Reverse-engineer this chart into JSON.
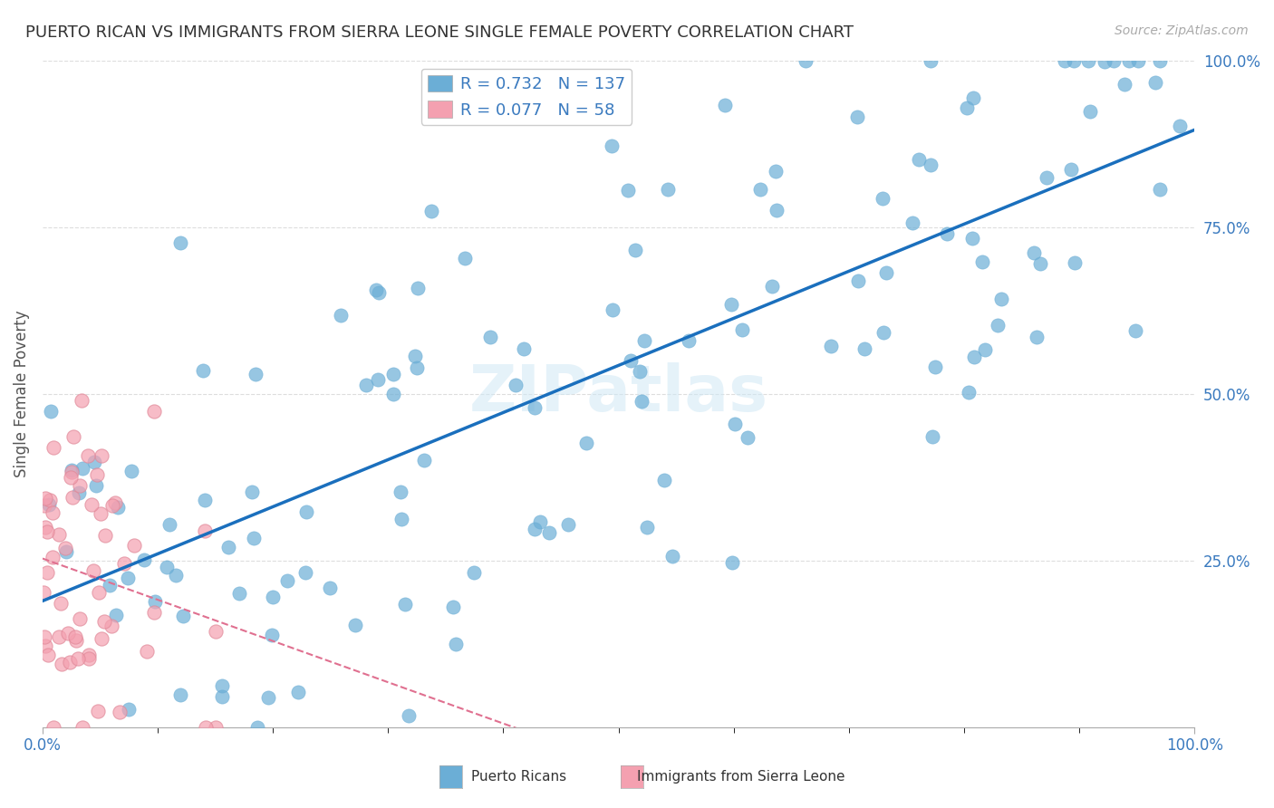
{
  "title": "PUERTO RICAN VS IMMIGRANTS FROM SIERRA LEONE SINGLE FEMALE POVERTY CORRELATION CHART",
  "source": "Source: ZipAtlas.com",
  "xlabel": "",
  "ylabel": "Single Female Poverty",
  "xlim": [
    0.0,
    1.0
  ],
  "ylim": [
    0.0,
    1.0
  ],
  "xtick_labels": [
    "0.0%",
    "100.0%"
  ],
  "ytick_labels": [
    "25.0%",
    "50.0%",
    "75.0%",
    "100.0%"
  ],
  "legend1_label": "Puerto Ricans",
  "legend2_label": "Immigrants from Sierra Leone",
  "R1": 0.732,
  "N1": 137,
  "R2": 0.077,
  "N2": 58,
  "blue_color": "#6baed6",
  "pink_color": "#f4a0b0",
  "line_blue": "#1a6fbd",
  "line_pink": "#e07090",
  "text_blue": "#3a7abf",
  "watermark": "ZIPatlas",
  "background": "#ffffff",
  "grid_color": "#dddddd",
  "title_color": "#333333",
  "title_fontsize": 13,
  "seed": 42
}
